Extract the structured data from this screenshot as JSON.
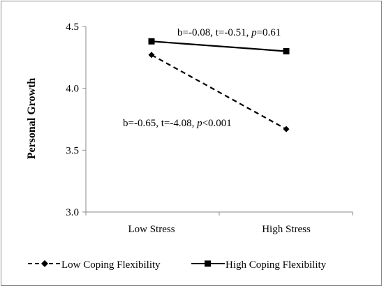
{
  "chart_data": {
    "type": "line",
    "ylabel": "Personal Growth",
    "xlabel": "",
    "ylim": [
      3.0,
      4.5
    ],
    "yticks": [
      "3.0",
      "3.5",
      "4.0",
      "4.5"
    ],
    "yticks_values": [
      3.0,
      3.5,
      4.0,
      4.5
    ],
    "categories": [
      "Low Stress",
      "High Stress"
    ],
    "grid": false,
    "legend_position": "bottom",
    "series": [
      {
        "name": "Low Coping Flexibility",
        "values": [
          4.27,
          3.67
        ],
        "line_style": "dashed",
        "marker": "diamond",
        "color": "#000000"
      },
      {
        "name": "High Coping Flexibility",
        "values": [
          4.38,
          4.3
        ],
        "line_style": "solid",
        "marker": "square",
        "color": "#000000"
      }
    ],
    "annotations": [
      {
        "series": "High Coping Flexibility",
        "text_prefix": "b=-0.08, t=-0.51, ",
        "p_symbol": "p",
        "p_value": "=0.61"
      },
      {
        "series": "Low Coping Flexibility",
        "text_prefix": "b=-0.65, t=-4.08, ",
        "p_symbol": "p",
        "p_value": "<0.001"
      }
    ]
  }
}
